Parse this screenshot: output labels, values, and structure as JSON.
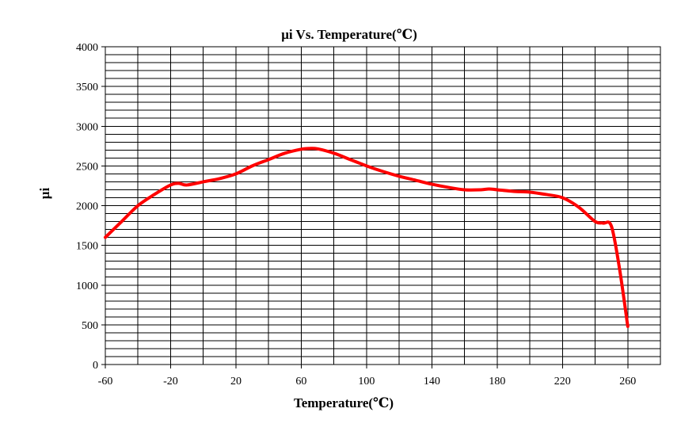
{
  "chart_data": {
    "type": "line",
    "title": "μi Vs. Temperature(℃)",
    "xlabel": "Temperature(℃)",
    "ylabel": "μi",
    "xlim": [
      -60,
      280
    ],
    "ylim": [
      0,
      4000
    ],
    "x_ticks": [
      -60,
      -20,
      20,
      60,
      100,
      140,
      180,
      220,
      260
    ],
    "y_ticks": [
      0,
      500,
      1000,
      1500,
      2000,
      2500,
      3000,
      3500,
      4000
    ],
    "x_minor_step": 20,
    "y_minor_step": 100,
    "grid": true,
    "series": [
      {
        "color": "#ff0000",
        "x": [
          -60,
          -50,
          -40,
          -30,
          -20,
          -15,
          -10,
          0,
          10,
          20,
          30,
          40,
          50,
          60,
          65,
          70,
          80,
          90,
          100,
          110,
          120,
          130,
          140,
          150,
          160,
          170,
          175,
          180,
          190,
          200,
          210,
          220,
          230,
          240,
          245,
          250,
          255,
          260
        ],
        "y": [
          1600,
          1800,
          2000,
          2140,
          2260,
          2280,
          2260,
          2300,
          2340,
          2400,
          2500,
          2580,
          2660,
          2710,
          2720,
          2715,
          2660,
          2580,
          2500,
          2430,
          2370,
          2320,
          2270,
          2230,
          2200,
          2200,
          2210,
          2200,
          2180,
          2170,
          2140,
          2100,
          1980,
          1800,
          1780,
          1740,
          1200,
          480
        ]
      }
    ]
  }
}
